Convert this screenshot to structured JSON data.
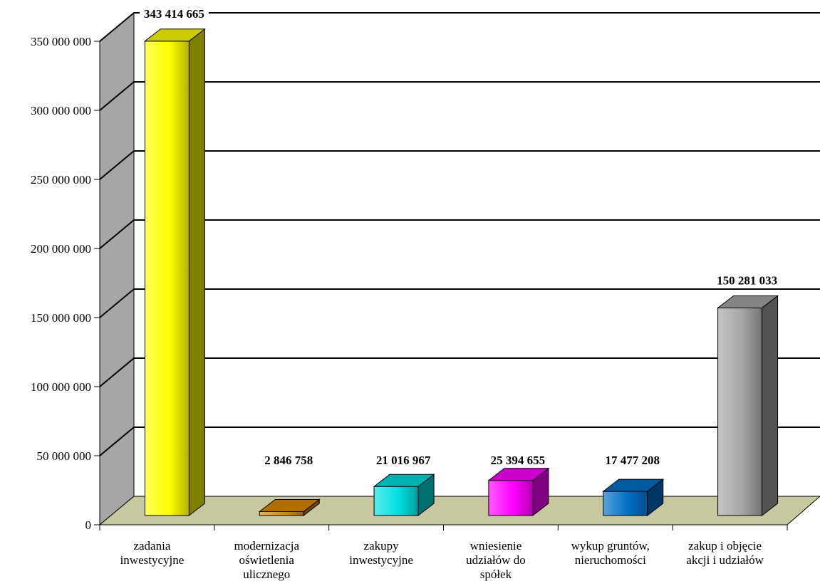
{
  "chart_data": {
    "type": "bar",
    "categories": [
      [
        "zadania",
        "inwestycyjne"
      ],
      [
        "modernizacja",
        "oświetlenia",
        "ulicznego"
      ],
      [
        "zakupy",
        "inwestycyjne"
      ],
      [
        "wniesienie",
        "udziałów do",
        "spółek"
      ],
      [
        "wykup gruntów,",
        "nieruchomości"
      ],
      [
        "zakup i objęcie",
        "akcji i udziałów"
      ]
    ],
    "values": [
      343414665,
      2846758,
      21016967,
      25394655,
      17477208,
      150281033
    ],
    "data_labels": [
      "343 414 665",
      "2 846 758",
      "21 016 967",
      "25 394 655",
      "17 477 208",
      "150 281 033"
    ],
    "colors": [
      "#ffff00",
      "#e08a00",
      "#00e0e0",
      "#ff00ff",
      "#0070c8",
      "#a6a6a6"
    ],
    "ylim": [
      0,
      350000000
    ],
    "yticks": [
      0,
      50000000,
      100000000,
      150000000,
      200000000,
      250000000,
      300000000,
      350000000
    ],
    "ytick_labels": [
      "0",
      "50 000 000",
      "100 000 000",
      "150 000 000",
      "200 000 000",
      "250 000 000",
      "300 000 000",
      "350 000 000"
    ],
    "grid": true,
    "title": "",
    "xlabel": "",
    "ylabel": "",
    "style": "3d-column",
    "wall_color": "#a6a6a6",
    "floor_color": "#c8c8a0"
  }
}
